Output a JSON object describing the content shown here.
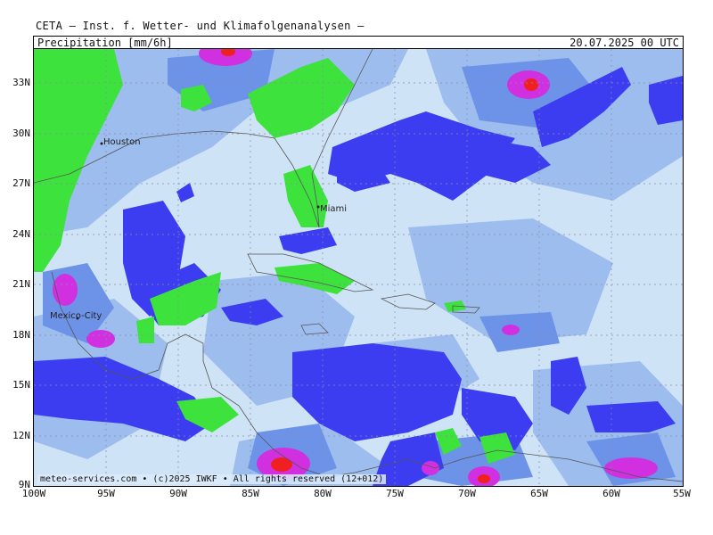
{
  "header": {
    "source": "CETA — Inst. f. Wetter- und Klimafolgenanalysen —",
    "parameter": "Precipitation [mm/6h]",
    "valid_time": "20.07.2025 00 UTC"
  },
  "credit": "meteo-services.com • (c)2025 IWKF • All rights reserved (12+012)",
  "axes": {
    "lat_labels": [
      "33N",
      "30N",
      "27N",
      "24N",
      "21N",
      "18N",
      "15N",
      "12N",
      "9N"
    ],
    "lon_labels": [
      "100W",
      "95W",
      "90W",
      "85W",
      "80W",
      "75W",
      "70W",
      "65W",
      "60W",
      "55W"
    ]
  },
  "cities": [
    {
      "name": "Houston"
    },
    {
      "name": "Miami"
    },
    {
      "name": "Mexico-City"
    }
  ],
  "colors": {
    "light": "#cfe3f6",
    "mid": "#9dbdee",
    "med": "#6d93e8",
    "heavy": "#3c3cf0",
    "green": "#3de23d",
    "magenta": "#d030e0",
    "red": "#f02020",
    "coast": "#555555"
  }
}
